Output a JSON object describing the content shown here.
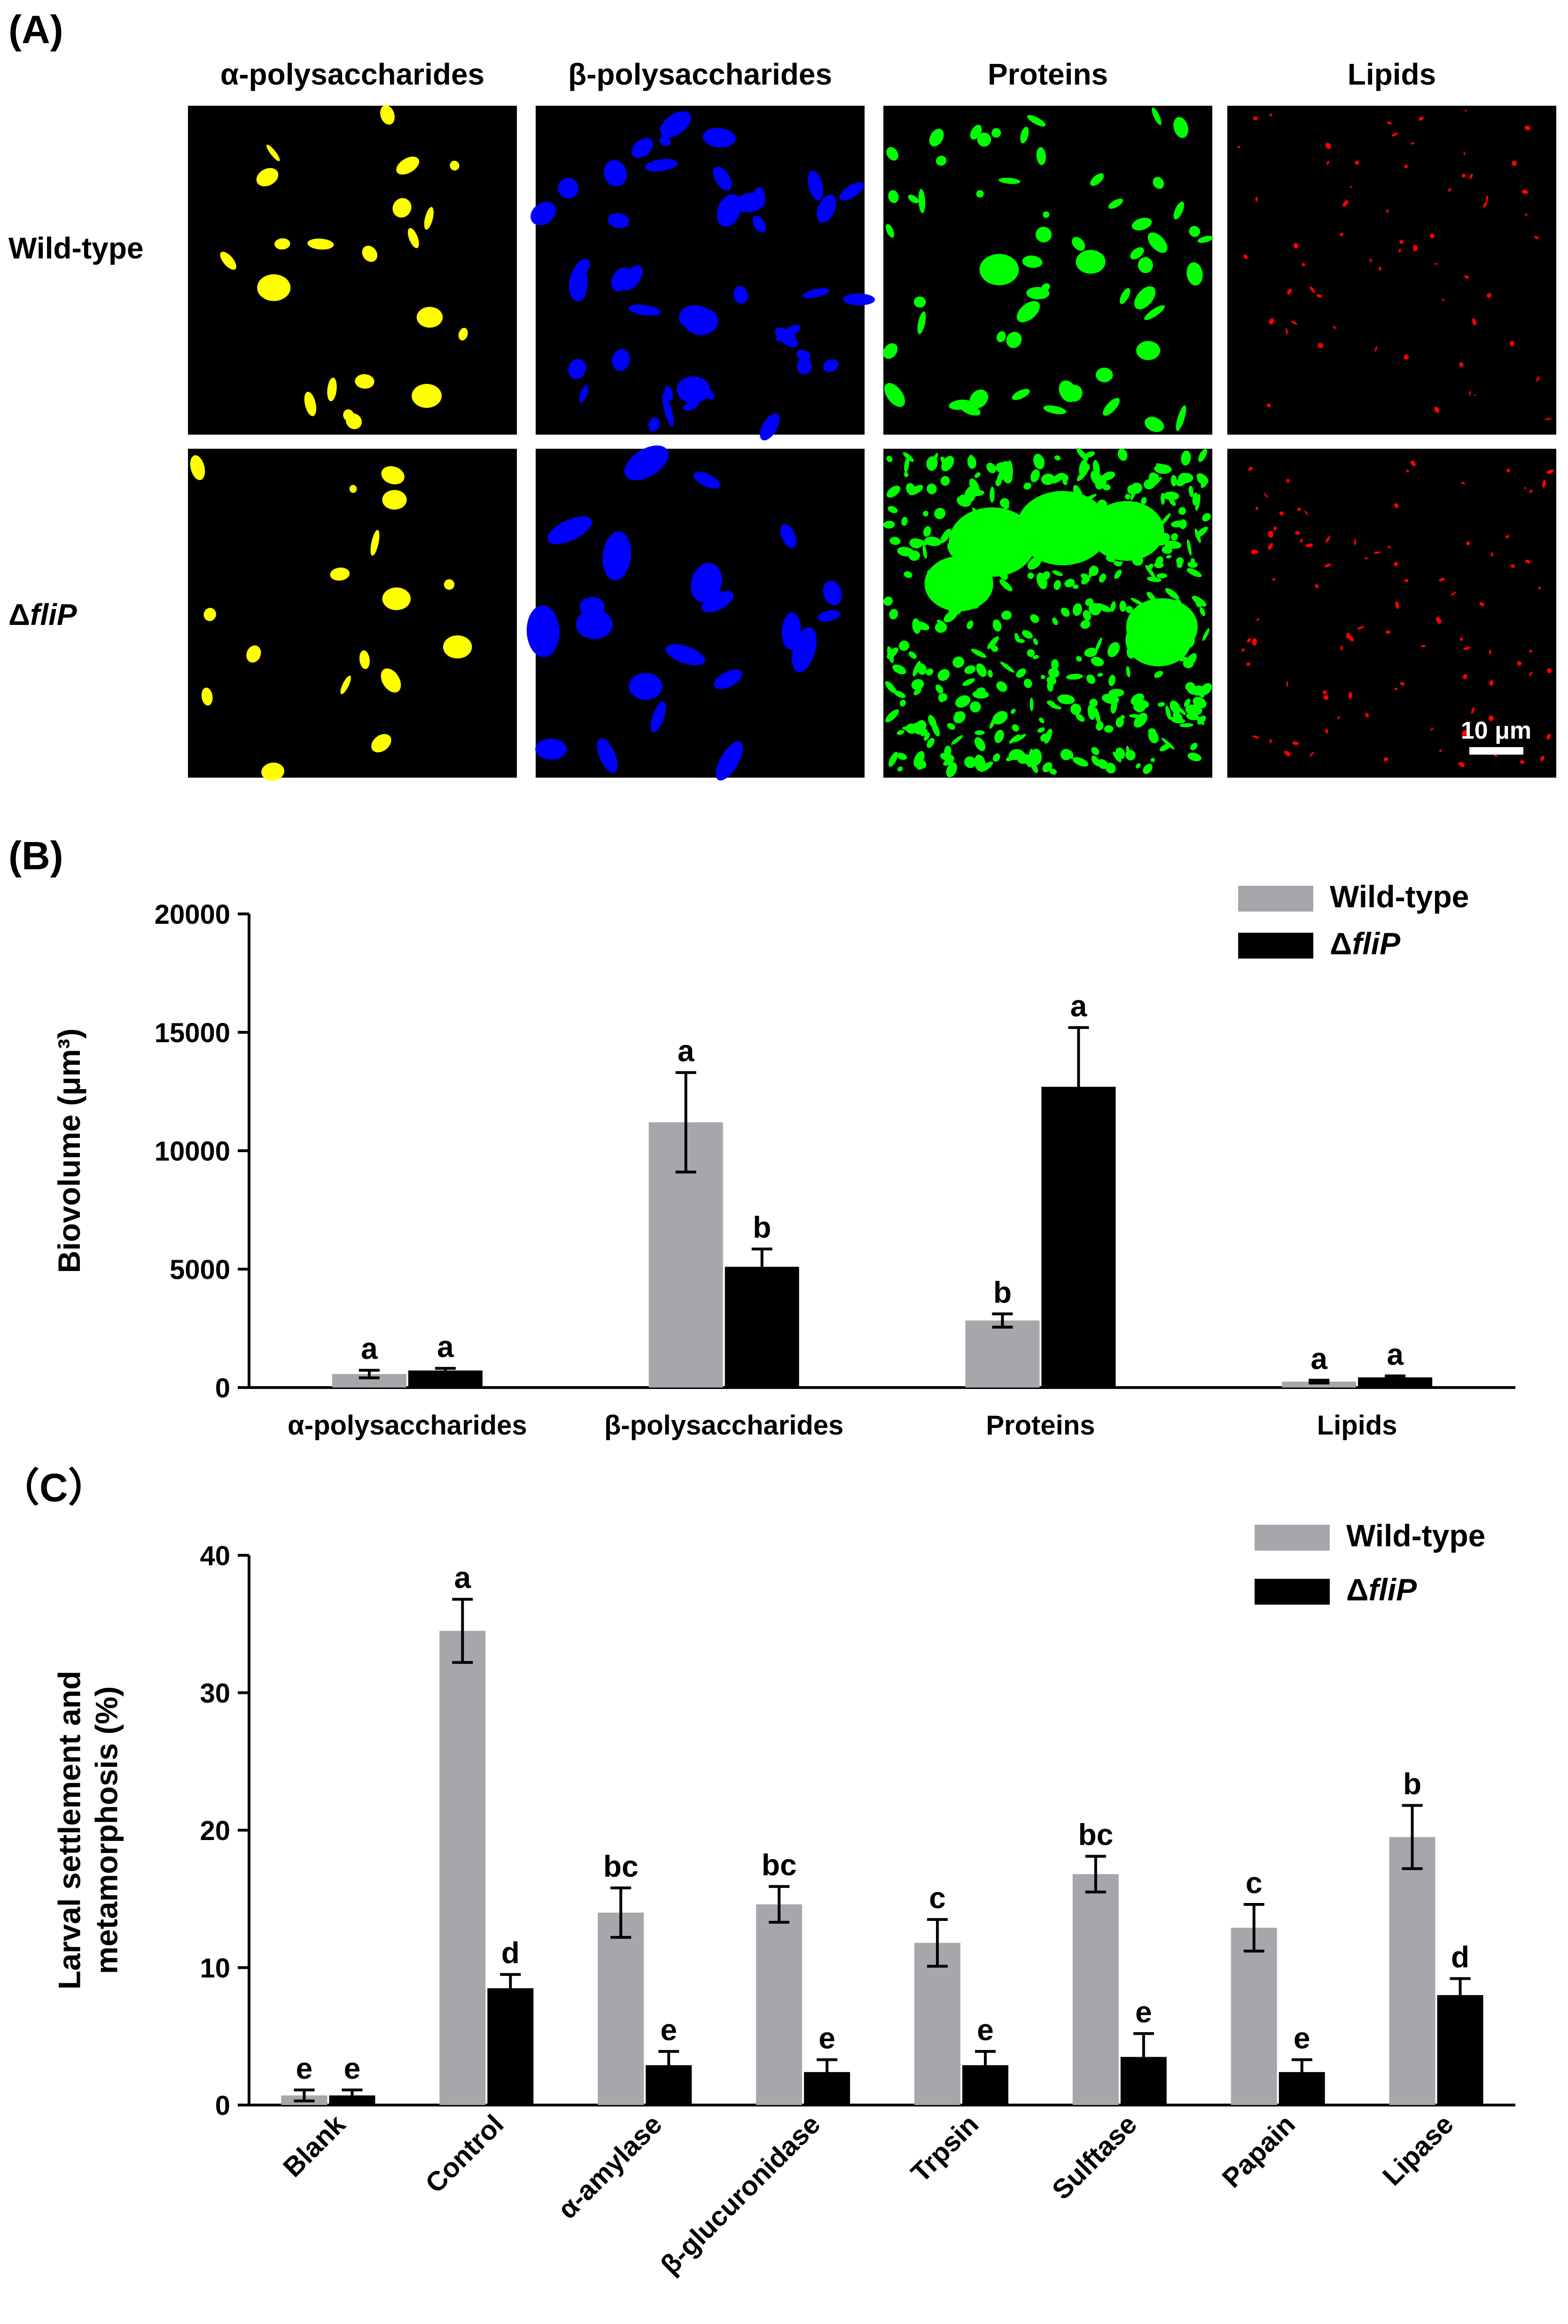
{
  "panels": {
    "A": {
      "label": "(A)",
      "columns": [
        "α-polysaccharides",
        "β-polysaccharides",
        "Proteins",
        "Lipids"
      ],
      "rows": [
        {
          "prefix": "",
          "italic": "Wild-type"
        },
        {
          "prefix": "Δ",
          "italic": "fliP"
        }
      ],
      "channel_colors": [
        "#ffff00",
        "#0000ff",
        "#00ff00",
        "#ff0000"
      ],
      "scale_bar": "10 μm"
    },
    "B": {
      "label": "(B)"
    },
    "C": {
      "label": "（C）"
    }
  },
  "chart_data": [
    {
      "type": "bar",
      "ylabel": "Biovolume (μm³)",
      "ylim": [
        0,
        20000
      ],
      "yticks": [
        0,
        5000,
        10000,
        15000,
        20000
      ],
      "categories": [
        "α-polysaccharides",
        "β-polysaccharides",
        "Proteins",
        "Lipids"
      ],
      "legend_position": "top-right",
      "series": [
        {
          "name": "Wild-type",
          "color": "#a6a6ab",
          "values": [
            570,
            11200,
            2830,
            250
          ],
          "errors": [
            160,
            2100,
            280,
            60
          ],
          "letters": [
            "a",
            "a",
            "b",
            "a"
          ]
        },
        {
          "name": "ΔfliP",
          "color": "#000000",
          "values": [
            720,
            5100,
            12700,
            430
          ],
          "errors": [
            90,
            750,
            2500,
            60
          ],
          "letters": [
            "a",
            "b",
            "a",
            "a"
          ]
        }
      ]
    },
    {
      "type": "bar",
      "ylabel": "Larval settlement and metamorphosis (%)",
      "ylabel_lines": [
        "Larval settlement and",
        "metamorphosis (%)"
      ],
      "ylim": [
        0,
        40
      ],
      "yticks": [
        0,
        10,
        20,
        30,
        40
      ],
      "categories": [
        "Blank",
        "Control",
        "α-amylase",
        "β-glucuronidase",
        "Trpsin",
        "Sulftase",
        "Papain",
        "Lipase"
      ],
      "legend_position": "top-right",
      "series": [
        {
          "name": "Wild-type",
          "color": "#a6a6ab",
          "values": [
            0.7,
            34.5,
            14.0,
            14.6,
            11.8,
            16.8,
            12.9,
            19.5
          ],
          "errors": [
            0.4,
            2.3,
            1.8,
            1.3,
            1.7,
            1.3,
            1.7,
            2.3
          ],
          "letters": [
            "e",
            "a",
            "bc",
            "bc",
            "c",
            "bc",
            "c",
            "b"
          ]
        },
        {
          "name": "ΔfliP",
          "color": "#000000",
          "values": [
            0.7,
            8.5,
            2.9,
            2.4,
            2.9,
            3.5,
            2.4,
            8.0
          ],
          "errors": [
            0.4,
            1.0,
            1.0,
            0.9,
            1.0,
            1.7,
            0.9,
            1.2
          ],
          "letters": [
            "e",
            "d",
            "e",
            "e",
            "e",
            "e",
            "e",
            "d"
          ]
        }
      ]
    }
  ]
}
